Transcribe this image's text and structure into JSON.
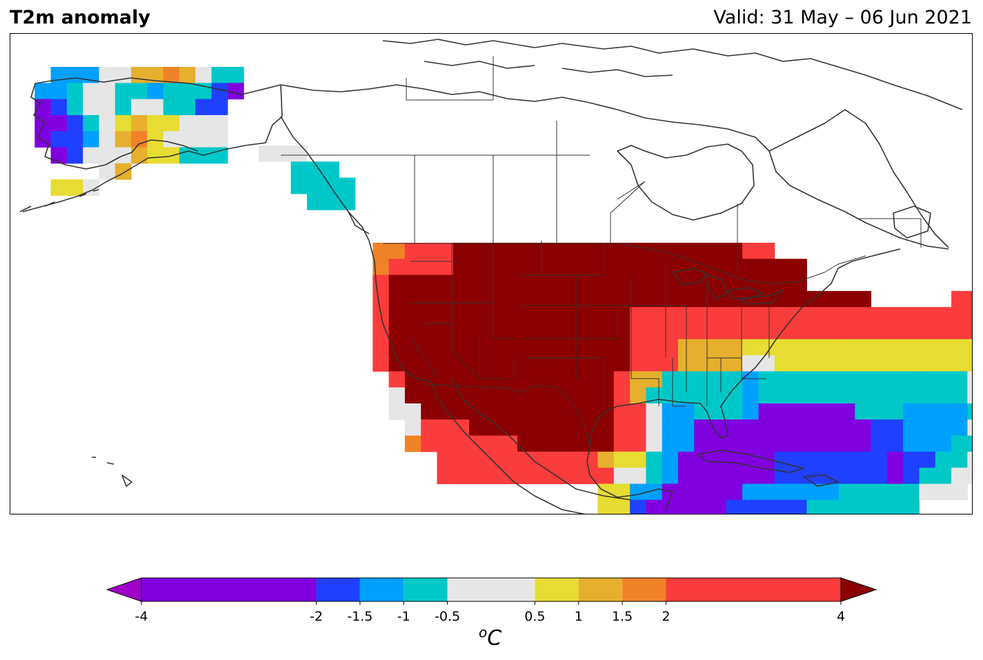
{
  "title": "T2m anomaly",
  "valid_text": "Valid: 31 May – 06 Jun 2021",
  "colorbar": {
    "unit": "°C",
    "unit_prefix": "o",
    "unit_main": "C",
    "ticks": [
      {
        "value": -4,
        "label": "-4"
      },
      {
        "value": -2,
        "label": "-2"
      },
      {
        "value": -1.5,
        "label": "-1.5"
      },
      {
        "value": -1,
        "label": "-1"
      },
      {
        "value": -0.5,
        "label": "-0.5"
      },
      {
        "value": 0.5,
        "label": "0.5"
      },
      {
        "value": 1,
        "label": "1"
      },
      {
        "value": 1.5,
        "label": "1.5"
      },
      {
        "value": 2,
        "label": "2"
      },
      {
        "value": 4,
        "label": "4"
      }
    ],
    "bins": [
      {
        "from": -4,
        "to": -2,
        "color": "#8000e0"
      },
      {
        "from": -2,
        "to": -1.5,
        "color": "#2040ff"
      },
      {
        "from": -1.5,
        "to": -1,
        "color": "#00a0ff"
      },
      {
        "from": -1,
        "to": -0.5,
        "color": "#00c8c8"
      },
      {
        "from": -0.5,
        "to": 0.5,
        "color": "#e6e6e6"
      },
      {
        "from": 0.5,
        "to": 1,
        "color": "#e6dc32"
      },
      {
        "from": 1,
        "to": 1.5,
        "color": "#e6af2d"
      },
      {
        "from": 1.5,
        "to": 2,
        "color": "#f08228"
      },
      {
        "from": 2,
        "to": 4,
        "color": "#fa3c3c"
      }
    ],
    "under_color": "#a000c8",
    "over_color": "#8b0000"
  },
  "legend_key": {
    "P": "#8000e0",
    "B": "#2040ff",
    "L": "#00a0ff",
    "C": "#00c8c8",
    "G": "#e6e6e6",
    "Y": "#e6dc32",
    "A": "#e6af2d",
    "O": "#f08228",
    "R": "#fa3c3c",
    "D": "#8b0000"
  },
  "grids": {
    "alaska_rows": [
      "..LLLGGAAOAGCC",
      ".LLCGGCCLCCCBP",
      ".PBCGGCGGCCBB.",
      ".PPBCGYAYYGGG.",
      ".PBBLGAOYGGGG.",
      "..PBGGGAYYCCC.",
      ".....GA.......",
      "..YYG........."
    ],
    "bc_rows": [
      "GGG...",
      "..CCC.",
      "..CCCC",
      "...CCC"
    ],
    "conus_rows": [
      ".OORRRDDDDDDDDDDDDDDDDDDRR.....",
      ".ORRRRDDDDDDDDDDDDDDDDDDDDDD...",
      ".RDDDDDDDDDDDDDDDDDDDDDDDDDD...........RRRRR",
      ".RDDDDDDDDDDDDDDDDDDDDDDDDDDDDDD.....RRRRRRRRRRRR",
      ".RDDDDDDDDDDDDDDDRRRRRRRRRRRRRRRRRRRRRRRRRRRRROOORR",
      ".RDDDDDDDDDDDDDDDRRRRRRRRRRRRRRRRRRRRRRRRRRRRROOOR",
      ".RDDDDDDDDDDDDDDDRRRAAAAYYYYYYYYYYYYYYYYYYYYYYR",
      ".RDDDDDDDDDDDDDDDRRRAAAAGGYYYYYYYYYYYYYYYYYYAR",
      "..RDDDDDDDDDDDDDRAACCCCCLCCCCCCCCCCCCCGGYYYYYR",
      "..GDDDDDDDDDDDDDRACCCCCCLCCCCCCCCCCCCCGGGYYYYY",
      "..GGDDDDDDDDDDDDRRGLLCCCLPPPPPPCCCLLLLCCCGLLCC",
      "...GRRRDDDDDDDDDRRGLLPPPPPPPPPPPBBLLLLGGGLLLL",
      "...ORRRRRRDDDDDDRRGLLPPPPPPPPPPPBBLLLCCGGGLL",
      ".....RRRRRRRRRRAYYCLPPPPPPBBBBBBBPBBCCGGGG",
      ".....RRRRRRRRRRRGGCLPPPPPPBBBBBBBPBCCGGGG",
      "...............YYLLPPPPPLLLLLLCCCCCGGG",
      "...............YYBPPPPPBBBBBCCCCCCC.",
      "..................PPPPPBLL..........GG",
      "..................PPPPPLL...........GG",
      "...................PPP.............GG"
    ]
  }
}
